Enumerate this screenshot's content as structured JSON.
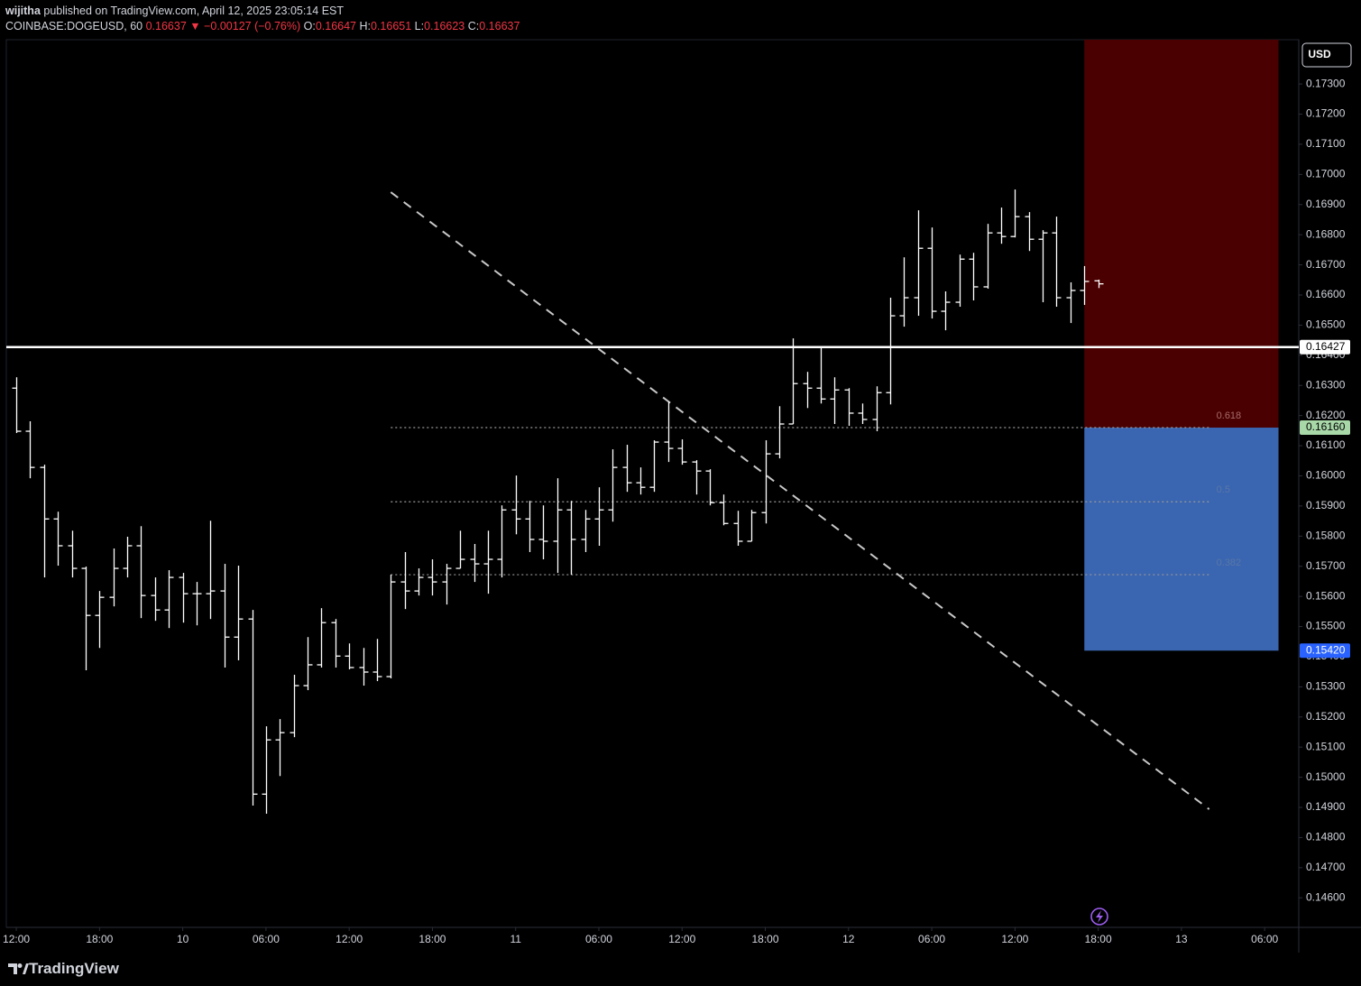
{
  "header": {
    "author": "wijitha",
    "published": " published on TradingView.com, April 12, 2025 23:05:14 EST",
    "symbol": "COINBASE:DOGEUSD, 60",
    "last": " 0.16637",
    "change": " ▼ −0.00127 (−0.76%)",
    "o_label": " O:",
    "o": "0.16647",
    "h_label": " H:",
    "h": "0.16651",
    "l_label": " L:",
    "l": "0.16623",
    "c_label": " C:",
    "c": "0.16637"
  },
  "footer": {
    "logo": "TradingView"
  },
  "chart_data": {
    "type": "ohlc",
    "color": "#ffffff",
    "grid": false,
    "currency": "USD",
    "x": [
      0,
      1,
      2,
      3,
      4,
      5,
      6,
      7,
      8,
      9,
      10,
      11,
      12,
      13,
      14,
      15,
      16,
      17,
      18,
      19,
      20,
      21,
      22,
      23,
      24,
      25,
      26,
      27,
      28,
      29,
      30,
      31,
      32,
      33,
      34,
      35,
      36,
      37,
      38,
      39,
      40,
      41,
      42,
      43,
      44,
      45,
      46,
      47,
      48,
      49,
      50,
      51,
      52,
      53,
      54,
      55,
      56,
      57,
      58,
      59,
      60,
      61,
      62,
      63,
      64,
      65,
      66,
      67,
      68,
      69,
      70,
      71,
      72,
      73,
      74,
      75,
      76,
      77,
      78
    ],
    "open": [
      0.16291,
      0.16148,
      0.16028,
      0.15857,
      0.15768,
      0.15693,
      0.15537,
      0.15597,
      0.15693,
      0.15768,
      0.15603,
      0.15555,
      0.15663,
      0.15609,
      0.15609,
      0.15618,
      0.15465,
      0.15525,
      0.14944,
      0.15124,
      0.15148,
      0.15304,
      0.15373,
      0.15513,
      0.15402,
      0.15364,
      0.15349,
      0.15334,
      0.15648,
      0.15618,
      0.15663,
      0.15648,
      0.15693,
      0.15723,
      0.15708,
      0.15723,
      0.15887,
      0.15857,
      0.15789,
      0.15783,
      0.15887,
      0.15789,
      0.15857,
      0.15887,
      0.16028,
      0.15977,
      0.15962,
      0.16112,
      0.16091,
      0.16046,
      0.16016,
      0.15911,
      0.15842,
      0.15783,
      0.15878,
      0.16073,
      0.16172,
      0.16306,
      0.16291,
      0.16255,
      0.16285,
      0.16208,
      0.16187,
      0.16276,
      0.16531,
      0.16591,
      0.16755,
      0.16546,
      0.16576,
      0.16719,
      0.16627,
      0.16806,
      0.16794,
      0.1686,
      0.16785,
      0.16806,
      0.16591,
      0.16615,
      0.16647
    ],
    "high": [
      0.16327,
      0.16181,
      0.16037,
      0.15881,
      0.15818,
      0.15699,
      0.15618,
      0.15759,
      0.15798,
      0.15833,
      0.15663,
      0.15687,
      0.15678,
      0.15648,
      0.15851,
      0.15708,
      0.15702,
      0.15555,
      0.15169,
      0.15193,
      0.1534,
      0.15465,
      0.15561,
      0.15525,
      0.15444,
      0.15429,
      0.15459,
      0.15672,
      0.15747,
      0.15693,
      0.15723,
      0.15708,
      0.15818,
      0.15774,
      0.15818,
      0.15902,
      0.16001,
      0.15917,
      0.15902,
      0.15992,
      0.15917,
      0.15887,
      0.15962,
      0.16088,
      0.16103,
      0.16028,
      0.16118,
      0.16246,
      0.16121,
      0.16052,
      0.16022,
      0.15938,
      0.15884,
      0.15887,
      0.16118,
      0.16231,
      0.16456,
      0.16345,
      0.16426,
      0.16327,
      0.16291,
      0.1624,
      0.16297,
      0.16591,
      0.16725,
      0.16881,
      0.16824,
      0.16612,
      0.16734,
      0.1674,
      0.16836,
      0.1689,
      0.1695,
      0.16875,
      0.16815,
      0.1686,
      0.16642,
      0.16696,
      0.16651
    ],
    "low": [
      0.16142,
      0.15992,
      0.15663,
      0.15702,
      0.15663,
      0.15355,
      0.15429,
      0.15567,
      0.15663,
      0.15528,
      0.15519,
      0.15495,
      0.15513,
      0.15504,
      0.15525,
      0.15364,
      0.15388,
      0.14906,
      0.14879,
      0.15004,
      0.15133,
      0.15289,
      0.15364,
      0.15364,
      0.15358,
      0.15304,
      0.15319,
      0.15328,
      0.15558,
      0.15603,
      0.15603,
      0.15573,
      0.15693,
      0.15648,
      0.15609,
      0.15663,
      0.15806,
      0.15747,
      0.15723,
      0.15678,
      0.15672,
      0.15747,
      0.15768,
      0.15848,
      0.15947,
      0.15938,
      0.15947,
      0.16046,
      0.16037,
      0.15938,
      0.15902,
      0.15836,
      0.15768,
      0.15783,
      0.15842,
      0.16058,
      0.16172,
      0.16225,
      0.1624,
      0.16172,
      0.16166,
      0.16172,
      0.16148,
      0.16237,
      0.16495,
      0.16531,
      0.16522,
      0.16483,
      0.16561,
      0.16582,
      0.16621,
      0.1677,
      0.16791,
      0.16746,
      0.16576,
      0.16561,
      0.16507,
      0.16567,
      0.16623
    ],
    "close": [
      0.16148,
      0.16028,
      0.15857,
      0.15768,
      0.15693,
      0.15537,
      0.15597,
      0.15693,
      0.15768,
      0.15603,
      0.15555,
      0.15663,
      0.15609,
      0.15609,
      0.15618,
      0.15465,
      0.15525,
      0.14944,
      0.15124,
      0.15148,
      0.15304,
      0.15373,
      0.15513,
      0.15402,
      0.15364,
      0.15349,
      0.15334,
      0.15648,
      0.15618,
      0.15663,
      0.15648,
      0.15693,
      0.15723,
      0.15708,
      0.15723,
      0.15887,
      0.15857,
      0.15789,
      0.15783,
      0.15887,
      0.15789,
      0.15857,
      0.15887,
      0.16028,
      0.15977,
      0.15962,
      0.16112,
      0.16091,
      0.16046,
      0.16016,
      0.15911,
      0.15842,
      0.15783,
      0.15878,
      0.16073,
      0.16172,
      0.16306,
      0.16291,
      0.16255,
      0.16285,
      0.16208,
      0.16187,
      0.16276,
      0.16531,
      0.16591,
      0.16755,
      0.16546,
      0.16576,
      0.16719,
      0.16627,
      0.16806,
      0.16794,
      0.1686,
      0.16785,
      0.16806,
      0.16591,
      0.16615,
      0.16645,
      0.16637
    ],
    "xlim": [
      -0.72,
      92.46
    ],
    "xticks": [
      {
        "value": 0,
        "label": "12:00"
      },
      {
        "value": 6,
        "label": "18:00"
      },
      {
        "value": 12,
        "label": "10"
      },
      {
        "value": 18,
        "label": "06:00"
      },
      {
        "value": 24,
        "label": "12:00"
      },
      {
        "value": 30,
        "label": "18:00"
      },
      {
        "value": 36,
        "label": "11"
      },
      {
        "value": 42,
        "label": "06:00"
      },
      {
        "value": 48,
        "label": "12:00"
      },
      {
        "value": 54,
        "label": "18:00"
      },
      {
        "value": 60,
        "label": "12"
      },
      {
        "value": 66,
        "label": "06:00"
      },
      {
        "value": 72,
        "label": "12:00"
      },
      {
        "value": 78,
        "label": "18:00"
      },
      {
        "value": 84,
        "label": "13"
      },
      {
        "value": 90,
        "label": "06:00"
      }
    ],
    "ylim": [
      0.14502,
      0.17447
    ],
    "yticks": [
      {
        "value": 0.173,
        "label": "0.17300"
      },
      {
        "value": 0.172,
        "label": "0.17200"
      },
      {
        "value": 0.171,
        "label": "0.17100"
      },
      {
        "value": 0.17,
        "label": "0.17000"
      },
      {
        "value": 0.169,
        "label": "0.16900"
      },
      {
        "value": 0.168,
        "label": "0.16800"
      },
      {
        "value": 0.167,
        "label": "0.16700"
      },
      {
        "value": 0.166,
        "label": "0.16600"
      },
      {
        "value": 0.165,
        "label": "0.16500"
      },
      {
        "value": 0.164,
        "label": "0.16400"
      },
      {
        "value": 0.163,
        "label": "0.16300"
      },
      {
        "value": 0.162,
        "label": "0.16200"
      },
      {
        "value": 0.161,
        "label": "0.16100"
      },
      {
        "value": 0.16,
        "label": "0.16000"
      },
      {
        "value": 0.159,
        "label": "0.15900"
      },
      {
        "value": 0.158,
        "label": "0.15800"
      },
      {
        "value": 0.157,
        "label": "0.15700"
      },
      {
        "value": 0.156,
        "label": "0.15600"
      },
      {
        "value": 0.155,
        "label": "0.15500"
      },
      {
        "value": 0.154,
        "label": "0.15400"
      },
      {
        "value": 0.153,
        "label": "0.15300"
      },
      {
        "value": 0.152,
        "label": "0.15200"
      },
      {
        "value": 0.151,
        "label": "0.15100"
      },
      {
        "value": 0.15,
        "label": "0.15000"
      },
      {
        "value": 0.149,
        "label": "0.14900"
      },
      {
        "value": 0.148,
        "label": "0.14800"
      },
      {
        "value": 0.147,
        "label": "0.14700"
      },
      {
        "value": 0.146,
        "label": "0.14600"
      }
    ],
    "price_line": 0.16427,
    "trendline": {
      "x": [
        27,
        86
      ],
      "y": [
        0.16941,
        0.14894
      ],
      "color": "#c8c8c8"
    },
    "fib": {
      "x": [
        27,
        86
      ],
      "levels": [
        {
          "ratio": 0.618,
          "value": 0.1616,
          "color": "#a66a6a"
        },
        {
          "ratio": 0.5,
          "value": 0.15914,
          "color": "#5878a8"
        },
        {
          "ratio": 0.382,
          "value": 0.15672,
          "color": "#5878a8"
        }
      ]
    },
    "position": {
      "x": [
        77,
        91
      ],
      "stop": 0.17447,
      "entry": {
        "value": 0.1616,
        "label": "0.16160"
      },
      "target": {
        "value": 0.1542,
        "label": "0.15420"
      },
      "stop_color": "#4a0000",
      "target_color": "#3a65b0"
    }
  }
}
